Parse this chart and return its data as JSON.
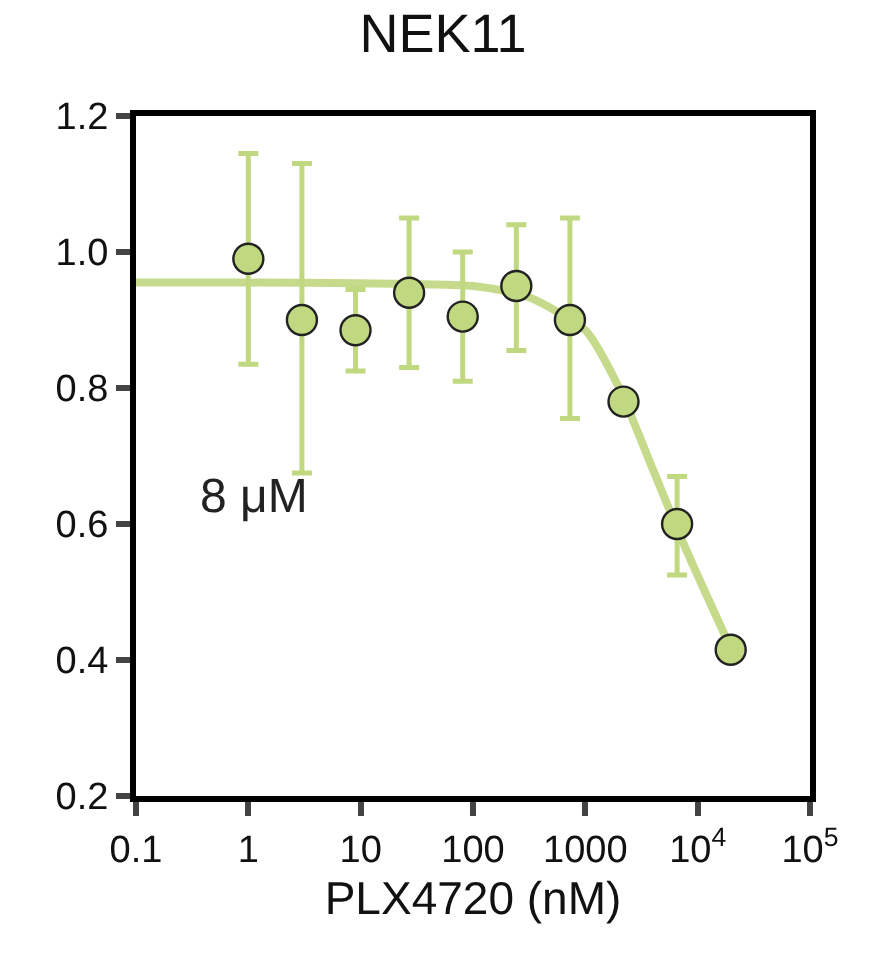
{
  "chart_data": {
    "type": "scatter",
    "title": "NEK11",
    "xlabel": "PLX4720 (nM)",
    "log": "x",
    "xlim": [
      0.1,
      100000
    ],
    "ylim": [
      0.2,
      1.2
    ],
    "xticks": [
      0.1,
      1,
      10,
      100,
      1000,
      {
        "value": 10000,
        "label": "10$^{4}$"
      },
      {
        "value": 100000,
        "label": "10$^{5}$"
      }
    ],
    "yticks": [
      {
        "value": 0.2,
        "label": "0.2"
      },
      {
        "value": 0.4,
        "label": "0.4"
      },
      {
        "value": 0.6,
        "label": "0.6"
      },
      {
        "value": 0.8,
        "label": "0.8"
      },
      {
        "value": 1.0,
        "label": "1.0"
      },
      {
        "value": 1.2,
        "label": "1.2"
      }
    ],
    "legend": false,
    "marker": "circle",
    "annotations": [
      "8 μM"
    ],
    "series": [
      {
        "type": "line",
        "marker": "none",
        "color": "#c6da8c",
        "x": [
          0.1,
          1,
          10,
          100,
          300,
          1000,
          2000,
          4000,
          8000,
          20000
        ],
        "values": [
          0.955,
          0.955,
          0.954,
          0.95,
          0.935,
          0.885,
          0.8,
          0.68,
          0.56,
          0.415
        ]
      },
      {
        "color": "#c0d880",
        "x": [
          1,
          3,
          9,
          27,
          81,
          243,
          729,
          2187,
          6561,
          19683
        ],
        "values": [
          0.99,
          0.9,
          0.885,
          0.94,
          0.905,
          0.95,
          0.9,
          0.78,
          0.6,
          0.415
        ],
        "errors": [
          [
            0.835,
            1.145
          ],
          [
            0.675,
            1.13
          ],
          [
            0.825,
            0.945
          ],
          [
            0.83,
            1.05
          ],
          [
            0.81,
            1.0
          ],
          [
            0.855,
            1.04
          ],
          [
            0.755,
            1.05
          ],
          null,
          [
            0.525,
            0.67
          ],
          null
        ]
      }
    ]
  }
}
